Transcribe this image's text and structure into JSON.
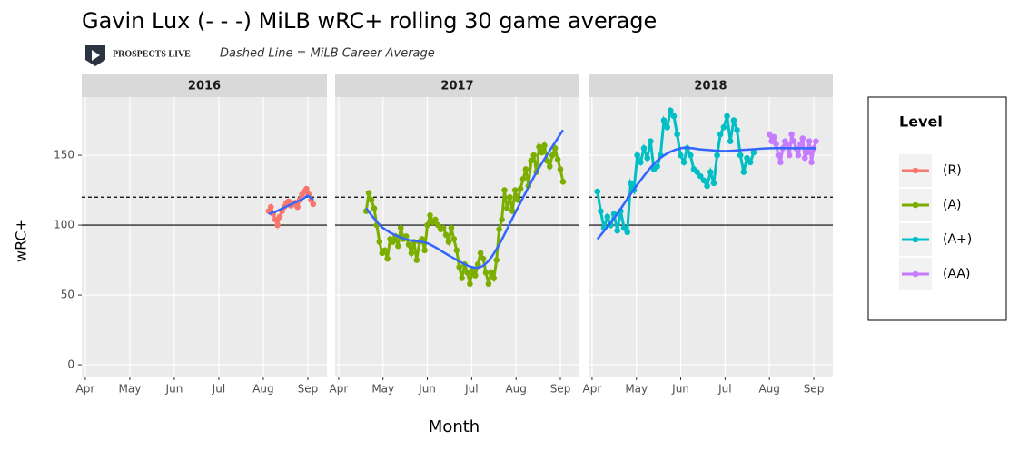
{
  "chart_data": {
    "type": "line",
    "title": "Gavin Lux (- - -) MiLB wRC+ rolling 30 game average",
    "logo_text": "PROSPECTS LIVE",
    "subtitle": "Dashed Line = MiLB Career Average",
    "x_label": "Month",
    "y_label": "wRC+",
    "xlim": [
      3.92,
      9.43
    ],
    "ylim": [
      -8.4,
      191.6
    ],
    "xticks": [
      {
        "value": 4,
        "label": "Apr"
      },
      {
        "value": 5,
        "label": "May"
      },
      {
        "value": 6,
        "label": "Jun"
      },
      {
        "value": 7,
        "label": "Jul"
      },
      {
        "value": 8,
        "label": "Aug"
      },
      {
        "value": 9,
        "label": "Sep"
      }
    ],
    "yticks": [
      0,
      50,
      100,
      150
    ],
    "grid": true,
    "hlines": [
      {
        "value": 100,
        "style": "solid"
      },
      {
        "value": 120,
        "style": "dashed"
      }
    ],
    "legend": {
      "title": "Level",
      "position": "right"
    },
    "facets": [
      {
        "title": "2016",
        "series": [
          {
            "name": "(R)",
            "color": "#F8766D",
            "x": [
              8.12,
              8.17,
              8.22,
              8.27,
              8.32,
              8.37,
              8.42,
              8.47,
              8.52,
              8.57,
              8.62,
              8.67,
              8.72,
              8.77,
              8.82,
              8.87,
              8.92,
              8.97,
              9.02,
              9.07,
              9.12
            ],
            "values": [
              110,
              113,
              108,
              104,
              100,
              106,
              110,
              113,
              116,
              117,
              114,
              115,
              116,
              113,
              118,
              122,
              124,
              126,
              122,
              118,
              115
            ]
          }
        ],
        "trend": {
          "color": "#3366FF",
          "x": [
            8.12,
            8.3,
            8.5,
            8.7,
            8.9,
            9.0,
            9.12
          ],
          "values": [
            108,
            110,
            113,
            116,
            119,
            121,
            118
          ]
        }
      },
      {
        "title": "2017",
        "series": [
          {
            "name": "(A)",
            "color": "#7CAE00",
            "x": [
              4.62,
              4.68,
              4.74,
              4.8,
              4.86,
              4.92,
              4.98,
              5.04,
              5.1,
              5.16,
              5.22,
              5.28,
              5.34,
              5.4,
              5.46,
              5.52,
              5.58,
              5.64,
              5.7,
              5.76,
              5.82,
              5.88,
              5.94,
              6.0,
              6.06,
              6.12,
              6.18,
              6.24,
              6.3,
              6.36,
              6.42,
              6.48,
              6.54,
              6.6,
              6.66,
              6.72,
              6.78,
              6.84,
              6.9,
              6.96,
              7.02,
              7.08,
              7.14,
              7.2,
              7.26,
              7.32,
              7.38,
              7.44,
              7.5,
              7.56,
              7.62,
              7.68,
              7.74,
              7.8,
              7.86,
              7.92,
              7.98,
              8.04,
              8.1,
              8.16,
              8.22,
              8.28,
              8.34,
              8.4,
              8.46,
              8.52,
              8.58,
              8.64,
              8.7,
              8.76,
              8.82,
              8.88,
              8.94,
              9.0,
              9.06
            ],
            "values": [
              110,
              123,
              118,
              112,
              100,
              88,
              80,
              82,
              76,
              90,
              88,
              92,
              85,
              98,
              90,
              92,
              86,
              80,
              88,
              75,
              88,
              90,
              82,
              100,
              107,
              102,
              104,
              100,
              97,
              98,
              93,
              88,
              98,
              90,
              82,
              70,
              62,
              72,
              66,
              58,
              68,
              64,
              72,
              80,
              76,
              66,
              58,
              66,
              62,
              75,
              97,
              104,
              125,
              112,
              120,
              110,
              125,
              118,
              126,
              133,
              140,
              128,
              146,
              150,
              138,
              156,
              152,
              157,
              146,
              142,
              150,
              155,
              147,
              140,
              131
            ]
          }
        ],
        "trend": {
          "color": "#3366FF",
          "x": [
            4.62,
            5.0,
            5.5,
            6.0,
            6.5,
            7.0,
            7.3,
            7.6,
            8.0,
            8.5,
            9.06
          ],
          "values": [
            112,
            98,
            90,
            87,
            78,
            70,
            72,
            85,
            110,
            140,
            168
          ]
        }
      },
      {
        "title": "2018",
        "series": [
          {
            "name": "(A+)",
            "color": "#00BFC4",
            "x": [
              4.12,
              4.195,
              4.27,
              4.345,
              4.42,
              4.495,
              4.57,
              4.645,
              4.72,
              4.795,
              4.87,
              4.945,
              5.02,
              5.095,
              5.17,
              5.245,
              5.32,
              5.395,
              5.47,
              5.545,
              5.62,
              5.695,
              5.77,
              5.845,
              5.92,
              5.995,
              6.07,
              6.145,
              6.22,
              6.295,
              6.37,
              6.445,
              6.52,
              6.595,
              6.67,
              6.745,
              6.82,
              6.895,
              6.97,
              7.045,
              7.12,
              7.195,
              7.27,
              7.345,
              7.42,
              7.495,
              7.57,
              7.645
            ],
            "values": [
              124,
              110,
              98,
              106,
              100,
              108,
              96,
              110,
              98,
              95,
              130,
              125,
              150,
              145,
              155,
              148,
              160,
              140,
              142,
              150,
              175,
              170,
              182,
              178,
              165,
              150,
              145,
              155,
              150,
              140,
              138,
              135,
              132,
              128,
              138,
              130,
              150,
              165,
              170,
              178,
              160,
              175,
              168,
              150,
              138,
              148,
              145,
              152
            ]
          },
          {
            "name": "(AA)",
            "color": "#C77CFF",
            "x": [
              8.0,
              8.05,
              8.1,
              8.15,
              8.2,
              8.25,
              8.3,
              8.35,
              8.4,
              8.45,
              8.5,
              8.55,
              8.6,
              8.65,
              8.7,
              8.75,
              8.8,
              8.85,
              8.9,
              8.95,
              9.0,
              9.05
            ],
            "values": [
              165,
              160,
              163,
              158,
              150,
              145,
              155,
              160,
              158,
              150,
              165,
              160,
              155,
              150,
              158,
              162,
              148,
              152,
              160,
              145,
              155,
              160
            ]
          }
        ],
        "trend": {
          "color": "#3366FF",
          "x": [
            4.12,
            4.5,
            5.0,
            5.5,
            6.0,
            6.5,
            7.0,
            7.5,
            8.0,
            8.5,
            9.05
          ],
          "values": [
            90,
            105,
            128,
            147,
            155,
            154,
            153,
            154,
            155,
            155,
            155
          ]
        }
      }
    ]
  }
}
